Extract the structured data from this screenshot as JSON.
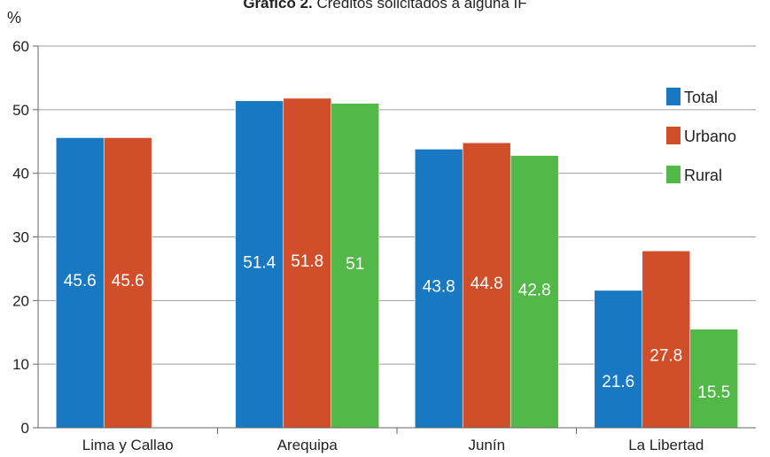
{
  "chart_data": {
    "type": "bar",
    "title_bold": "Gráfico 2.",
    "title_rest": " Créditos solicitados a alguna IF",
    "ylabel": "%",
    "xlabel": "",
    "ylim": [
      0,
      60
    ],
    "yticks": [
      0,
      10,
      20,
      30,
      40,
      50,
      60
    ],
    "grid": true,
    "legend_position": "right",
    "categories": [
      "Lima y Callao",
      "Arequipa",
      "Junín",
      "La Libertad"
    ],
    "series": [
      {
        "name": "Total",
        "color": "#1878c2",
        "values": [
          45.6,
          51.4,
          43.8,
          21.6
        ]
      },
      {
        "name": "Urbano",
        "color": "#d04e2a",
        "values": [
          45.6,
          51.8,
          44.8,
          27.8
        ]
      },
      {
        "name": "Rural",
        "color": "#52b848",
        "values": [
          null,
          51,
          42.8,
          15.5
        ]
      }
    ]
  }
}
